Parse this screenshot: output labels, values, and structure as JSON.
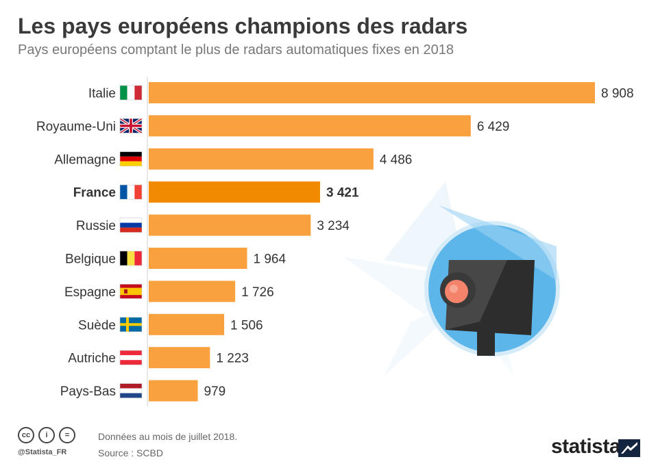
{
  "title": "Les pays européens champions des radars",
  "subtitle": "Pays européens comptant le plus de radars automatiques fixes en 2018",
  "chart_data": {
    "type": "bar",
    "orientation": "horizontal",
    "categories": [
      "Italie",
      "Royaume-Uni",
      "Allemagne",
      "France",
      "Russie",
      "Belgique",
      "Espagne",
      "Suède",
      "Autriche",
      "Pays-Bas"
    ],
    "values": [
      8908,
      6429,
      4486,
      3421,
      3234,
      1964,
      1726,
      1506,
      1223,
      979
    ],
    "value_labels": [
      "8 908",
      "6 429",
      "4 486",
      "3 421",
      "3 234",
      "1 964",
      "1 726",
      "1 506",
      "1 223",
      "979"
    ],
    "highlight": "France",
    "bar_color": "#f9a03f",
    "highlight_color": "#f28a00",
    "xlim": [
      0,
      8908
    ],
    "grid": false,
    "flags": [
      "it",
      "gb",
      "de",
      "fr",
      "ru",
      "be",
      "es",
      "se",
      "at",
      "nl"
    ]
  },
  "footer": {
    "note": "Données au mois de juillet 2018.",
    "source": "Source : SCBD",
    "handle": "@Statista_FR",
    "cc_icons": [
      "cc-icon",
      "by-icon",
      "equals-icon"
    ],
    "cc_glyphs": [
      "cc",
      "i",
      "="
    ],
    "brand": "statista"
  }
}
